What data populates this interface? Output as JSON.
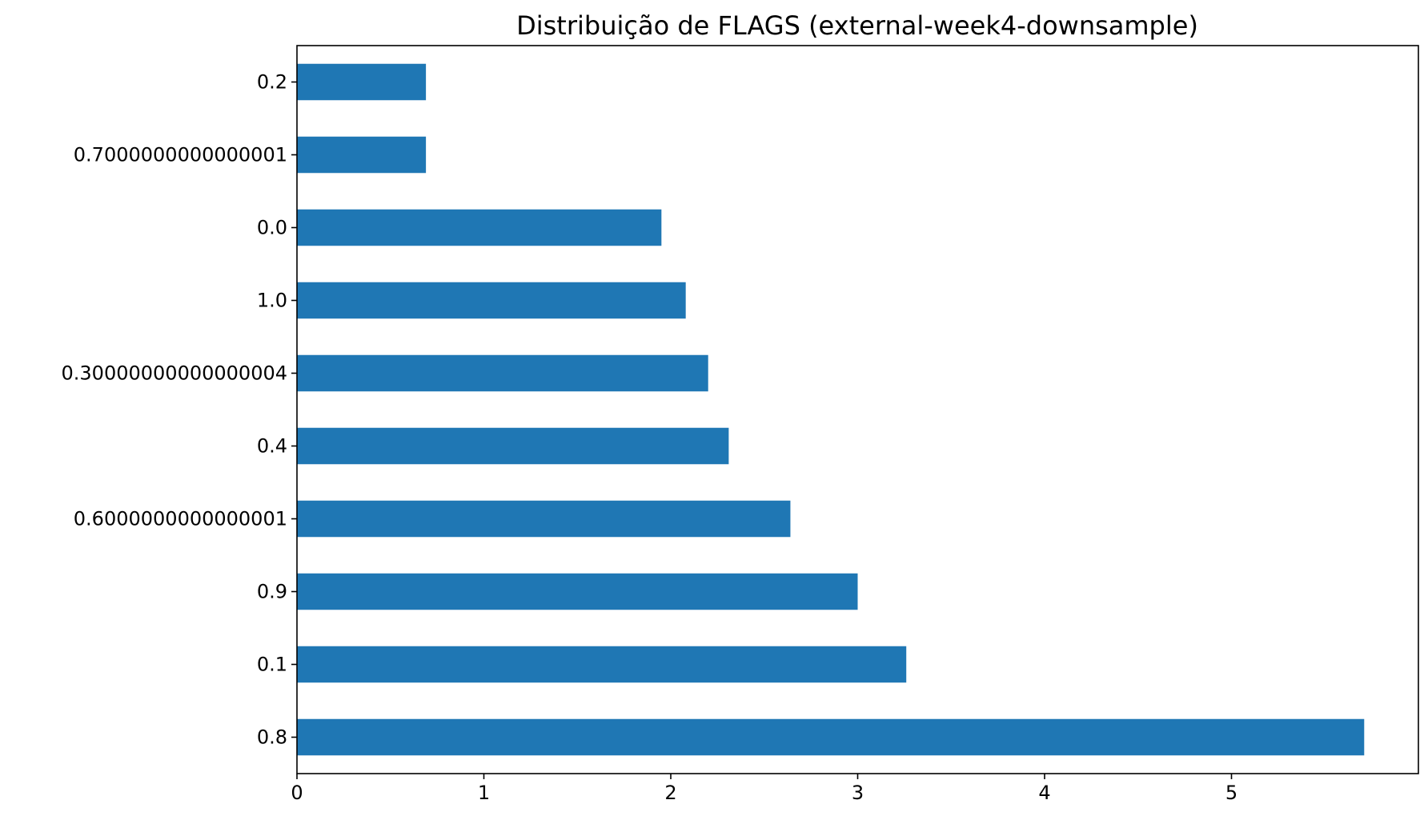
{
  "chart_data": {
    "type": "bar",
    "orientation": "horizontal",
    "title": "Distribuição de FLAGS (external-week4-downsample)",
    "xlabel": "",
    "ylabel": "",
    "categories": [
      "0.2",
      "0.7000000000000001",
      "0.0",
      "1.0",
      "0.30000000000000004",
      "0.4",
      "0.6000000000000001",
      "0.9",
      "0.1",
      "0.8"
    ],
    "values": [
      0.69,
      0.69,
      1.95,
      2.08,
      2.2,
      2.31,
      2.64,
      3.0,
      3.26,
      5.71
    ],
    "xlim": [
      0,
      6.0
    ],
    "xticks": [
      0,
      1,
      2,
      3,
      4,
      5
    ],
    "xtick_labels": [
      "0",
      "1",
      "2",
      "3",
      "4",
      "5"
    ],
    "bar_color": "#1f77b4",
    "grid": false,
    "legend": "none"
  }
}
